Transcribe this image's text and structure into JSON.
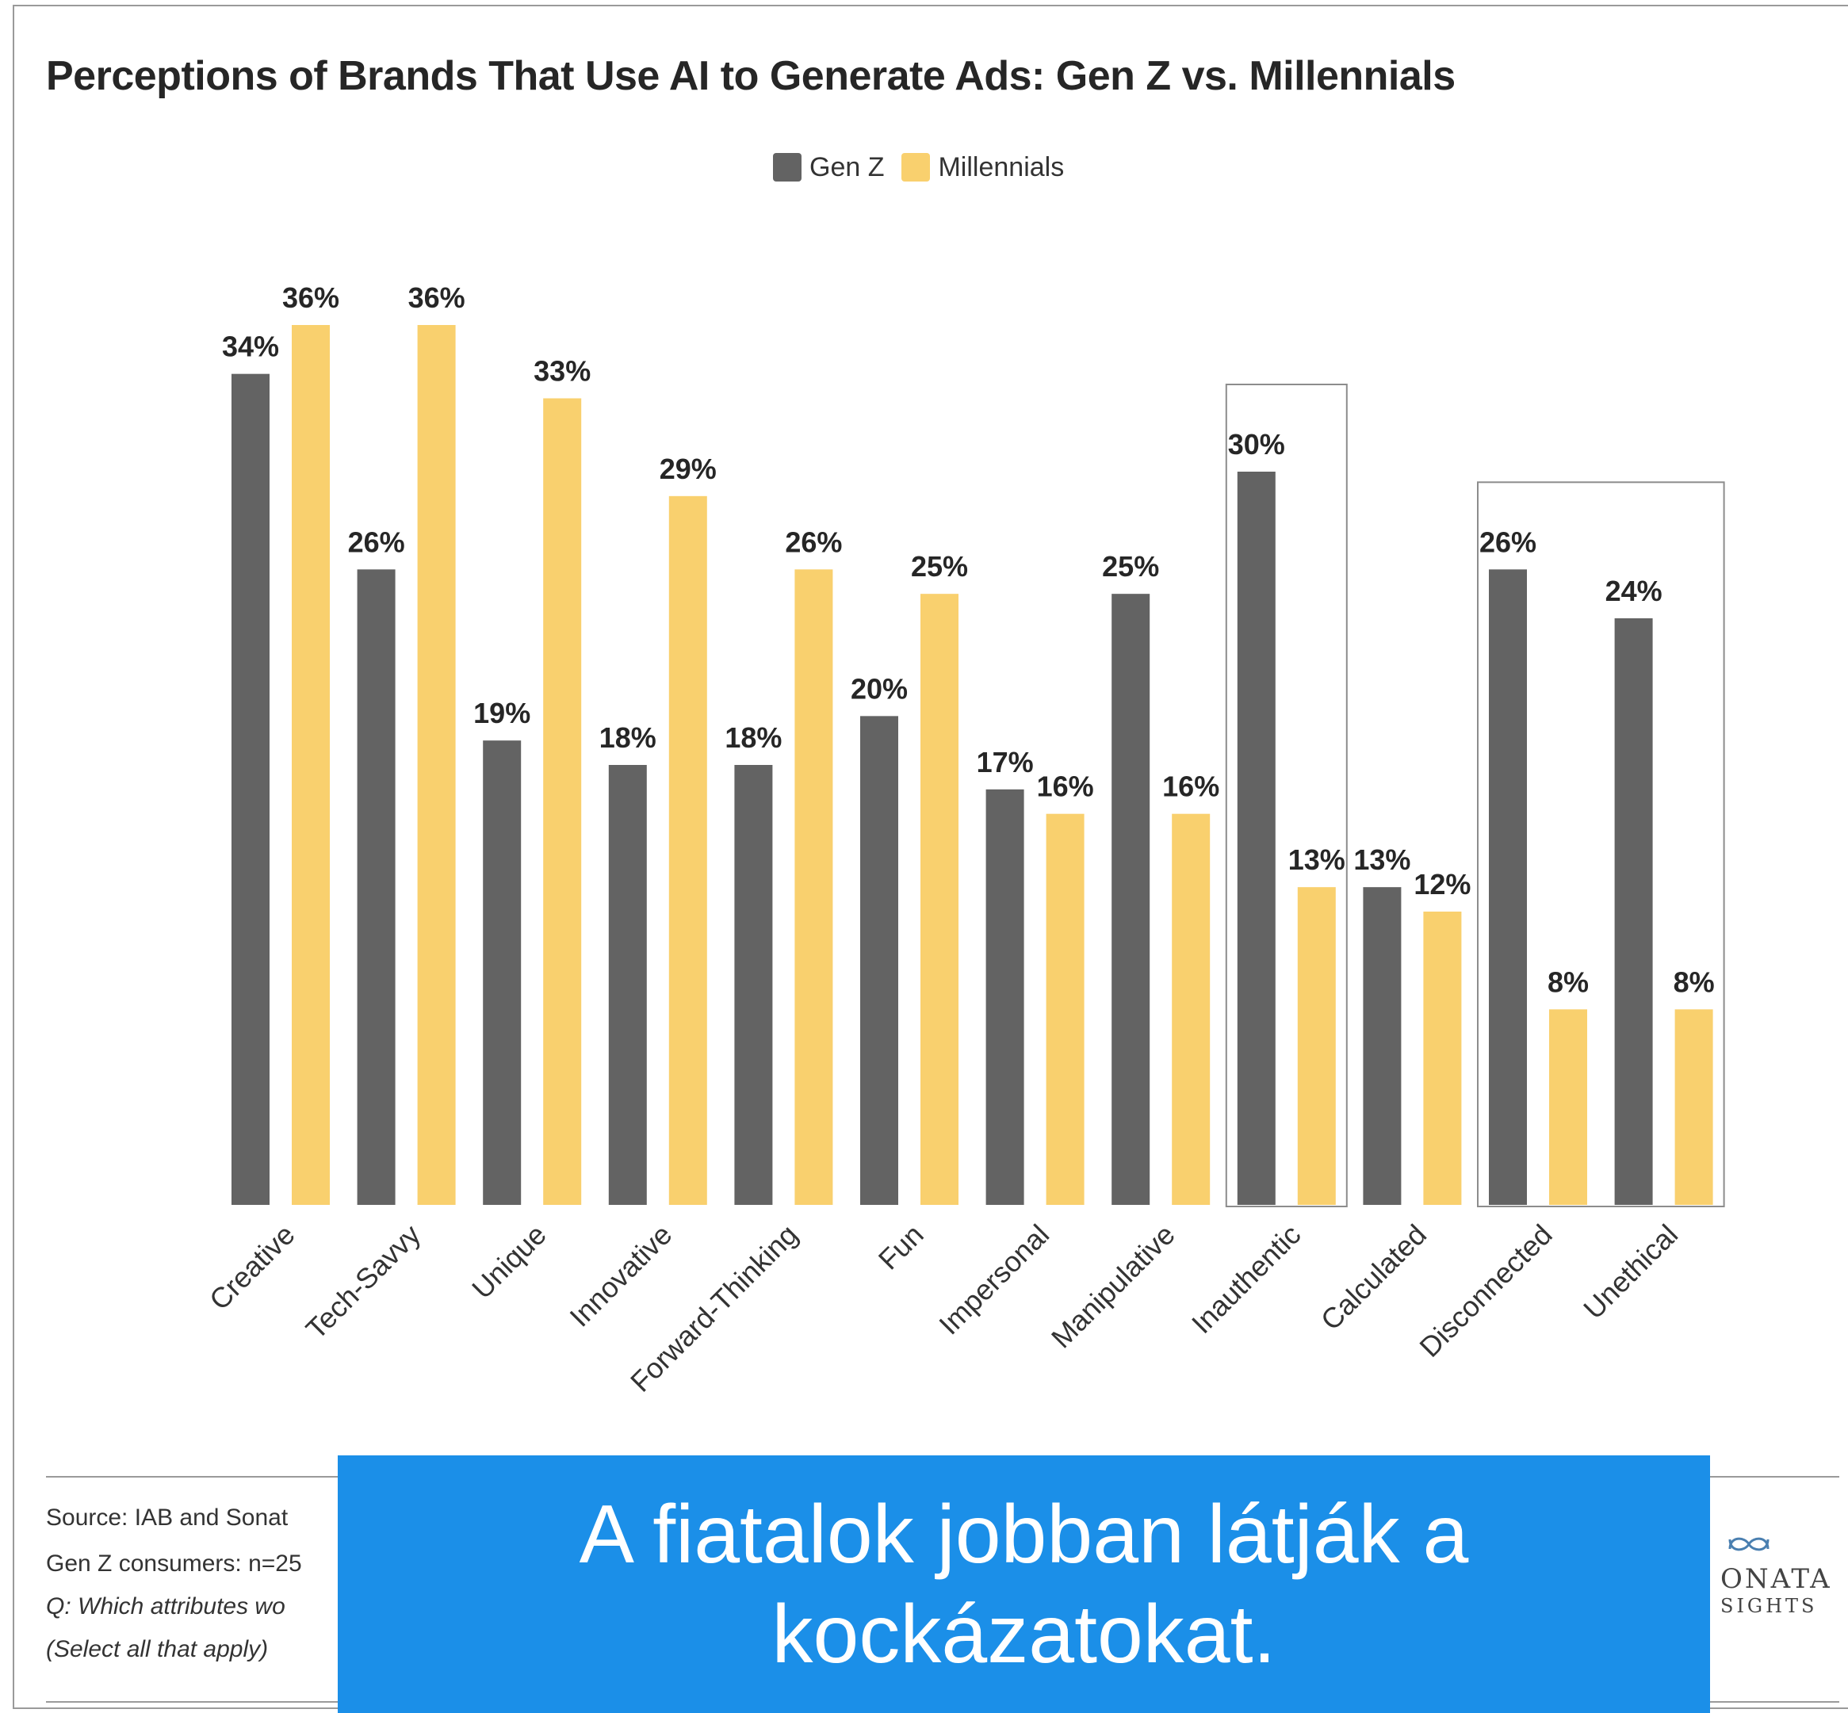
{
  "chart_data": {
    "type": "bar",
    "title": "Perceptions of Brands That Use AI to Generate Ads: Gen Z vs. Millennials",
    "categories": [
      "Creative",
      "Tech-Savvy",
      "Unique",
      "Innovative",
      "Forward-Thinking",
      "Fun",
      "Impersonal",
      "Manipulative",
      "Inauthentic",
      "Calculated",
      "Disconnected",
      "Unethical"
    ],
    "series": [
      {
        "name": "Gen Z",
        "color": "#636363",
        "values": [
          34,
          26,
          19,
          18,
          18,
          20,
          17,
          25,
          30,
          13,
          26,
          24
        ],
        "labels": [
          "34%",
          "26%",
          "19%",
          "18%",
          "18%",
          "20%",
          "17%",
          "25%",
          "30%",
          "13%",
          "26%",
          "24%"
        ]
      },
      {
        "name": "Millennials",
        "color": "#f9d06e",
        "values": [
          36,
          36,
          33,
          29,
          26,
          25,
          16,
          16,
          13,
          12,
          8,
          8
        ],
        "labels": [
          "36%",
          "36%",
          "33%",
          "29%",
          "26%",
          "25%",
          "16%",
          "16%",
          "13%",
          "12%",
          "8%",
          "8%"
        ]
      }
    ],
    "ylim": [
      0,
      36
    ],
    "highlighted_categories": [
      "Inauthentic",
      "Disconnected",
      "Unethical"
    ],
    "legend_position": "top-center",
    "grid": false
  },
  "footer": {
    "source": "Source: IAB and Sonat",
    "sample": "Gen Z consumers: n=25",
    "question": "Q: Which attributes wo",
    "instruction": "(Select all that apply)"
  },
  "banner": {
    "text": "A fiatalok jobban látják a kockázatokat.",
    "color": "#1b8fe8"
  },
  "logo": {
    "line1": "ONATA",
    "line2": "SIGHTS"
  }
}
